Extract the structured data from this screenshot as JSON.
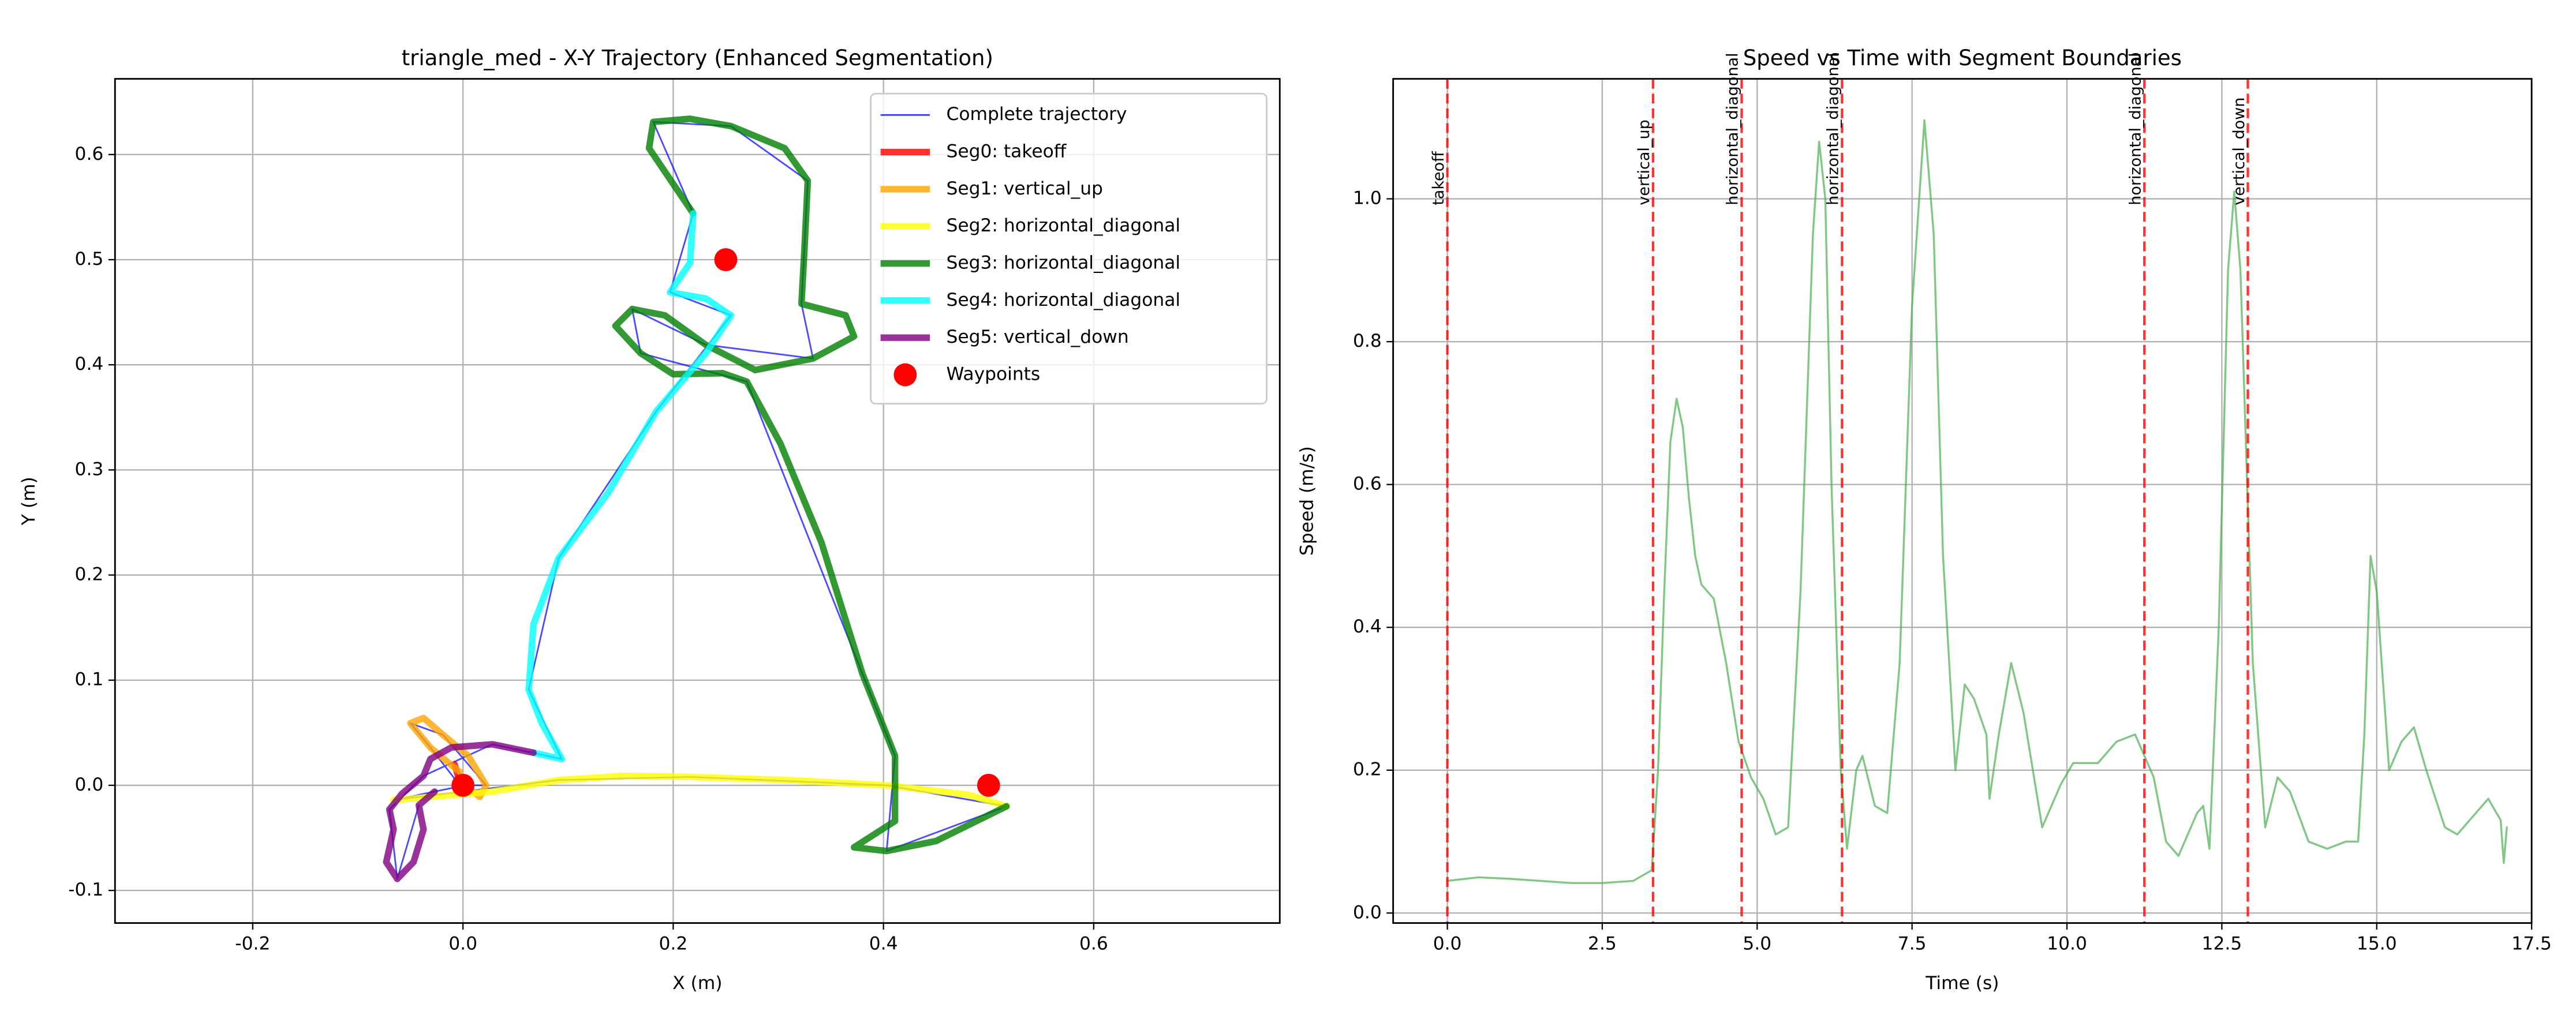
{
  "chart_data": [
    {
      "type": "line",
      "title": "triangle_med - X-Y Trajectory (Enhanced Segmentation)",
      "xlabel": "X (m)",
      "ylabel": "Y (m)",
      "xlim": [
        -0.331,
        0.777
      ],
      "ylim": [
        -0.131,
        0.672
      ],
      "xticks": [
        -0.2,
        {
          "value": 0,
          "label": "0.0"
        },
        0.2,
        0.4,
        0.6
      ],
      "yticks": [
        -0.1,
        {
          "value": 0,
          "label": "0.0"
        },
        0.1,
        0.2,
        0.3,
        0.4,
        0.5,
        0.6
      ],
      "grid": true,
      "legend": "upper right",
      "series": [
        {
          "name": "Complete trajectory",
          "color": "#0000ff",
          "linewidth": 1,
          "x": [
            -0.008,
            -0.003,
            -0.031,
            -0.05,
            -0.019,
            0.022,
            0.002,
            -0.066,
            0.091,
            0.216,
            0.403,
            0.517,
            0.403,
            0.411,
            0.38,
            0.27,
            0.169,
            0.161,
            0.231,
            0.333,
            0.322,
            0.328,
            0.255,
            0.181,
            0.219,
            0.197,
            0.255,
            0.184,
            0.091,
            0.0625,
            0.094,
            0.028,
            -0.0375,
            -0.07,
            -0.0625,
            -0.042
          ],
          "y": [
            0.02,
            0.0,
            0.036,
            0.059,
            0.048,
            0.0,
            0.0,
            -0.014,
            0.005,
            0.008,
            0.0,
            -0.02,
            -0.0625,
            0.028,
            0.106,
            0.384,
            0.411,
            0.453,
            0.419,
            0.406,
            0.458,
            0.575,
            0.627,
            0.631,
            0.544,
            0.469,
            0.447,
            0.356,
            0.216,
            0.091,
            0.025,
            0.039,
            0.009,
            -0.023,
            -0.089,
            -0.019
          ]
        },
        {
          "name": "Seg0: takeoff",
          "color": "#ff0000",
          "linewidth": 4,
          "x": [
            -0.008,
            -0.005,
            -0.003
          ],
          "y": [
            0.02,
            0.01,
            0.0
          ]
        },
        {
          "name": "Seg1: vertical_up",
          "color": "#ffa500",
          "linewidth": 4,
          "x": [
            -0.003,
            -0.031,
            -0.05,
            -0.0375,
            -0.019,
            0.005,
            0.022,
            0.016,
            0.002
          ],
          "y": [
            0.0125,
            0.036,
            0.059,
            0.064,
            0.048,
            0.028,
            0.0,
            -0.011,
            0.0
          ]
        },
        {
          "name": "Seg2: horizontal_diagonal",
          "color": "#ffff00",
          "linewidth": 4,
          "x": [
            -0.066,
            0.028,
            0.091,
            0.153,
            0.216,
            0.309,
            0.403,
            0.481,
            0.517
          ],
          "y": [
            -0.014,
            -0.006,
            0.005,
            0.009,
            0.008,
            0.005,
            0.0,
            -0.009,
            -0.02
          ]
        },
        {
          "name": "Seg3: horizontal_diagonal",
          "color": "#008000",
          "linewidth": 4,
          "x": [
            0.517,
            0.45,
            0.403,
            0.372,
            0.411,
            0.411,
            0.38,
            0.341,
            0.302,
            0.27,
            0.247,
            0.2,
            0.169,
            0.145,
            0.161,
            0.192,
            0.231,
            0.278,
            0.333,
            0.372,
            0.364,
            0.322,
            0.325,
            0.328,
            0.306,
            0.255,
            0.216,
            0.181,
            0.177,
            0.2,
            0.219
          ],
          "y": [
            -0.02,
            -0.053,
            -0.0625,
            -0.059,
            -0.034,
            0.028,
            0.106,
            0.231,
            0.325,
            0.384,
            0.392,
            0.391,
            0.411,
            0.437,
            0.453,
            0.447,
            0.419,
            0.395,
            0.406,
            0.427,
            0.447,
            0.458,
            0.513,
            0.575,
            0.606,
            0.627,
            0.634,
            0.631,
            0.606,
            0.572,
            0.544
          ]
        },
        {
          "name": "Seg4: horizontal_diagonal",
          "color": "#00ffff",
          "linewidth": 4,
          "x": [
            0.219,
            0.216,
            0.197,
            0.231,
            0.255,
            0.231,
            0.184,
            0.138,
            0.091,
            0.067,
            0.0625,
            0.075,
            0.094,
            0.067
          ],
          "y": [
            0.544,
            0.497,
            0.469,
            0.463,
            0.447,
            0.411,
            0.356,
            0.278,
            0.216,
            0.153,
            0.091,
            0.059,
            0.025,
            0.031
          ]
        },
        {
          "name": "Seg5: vertical_down",
          "color": "#800080",
          "linewidth": 4,
          "x": [
            0.067,
            0.028,
            -0.011,
            -0.031,
            -0.0375,
            -0.058,
            -0.07,
            -0.066,
            -0.073,
            -0.0625,
            -0.047,
            -0.0375,
            -0.042,
            -0.027
          ],
          "y": [
            0.031,
            0.039,
            0.036,
            0.025,
            0.009,
            -0.008,
            -0.023,
            -0.042,
            -0.073,
            -0.089,
            -0.073,
            -0.042,
            -0.019,
            -0.006
          ]
        },
        {
          "name": "Waypoints",
          "color": "#ff0000",
          "mode": "markers",
          "x": [
            0,
            0.5,
            0.25
          ],
          "y": [
            0,
            0,
            0.5
          ]
        }
      ]
    },
    {
      "type": "line",
      "title": "Speed vs Time with Segment Boundaries",
      "xlabel": "Time (s)",
      "ylabel": "Speed (m/s)",
      "xlim": [
        -0.875,
        17.5
      ],
      "ylim": [
        -0.014,
        1.168
      ],
      "xticks": [
        {
          "value": 0,
          "label": "0.0"
        },
        2.5,
        {
          "value": 5,
          "label": "5.0"
        },
        7.5,
        {
          "value": 10,
          "label": "10.0"
        },
        12.5,
        {
          "value": 15,
          "label": "15.0"
        },
        17.5
      ],
      "yticks": [
        {
          "value": 0,
          "label": "0.0"
        },
        0.2,
        0.4,
        0.6,
        0.8,
        {
          "value": 1,
          "label": "1.0"
        }
      ],
      "grid": true,
      "boundaries": [
        {
          "x": 0,
          "label": "takeoff"
        },
        {
          "x": 3.32,
          "label": "vertical_up"
        },
        {
          "x": 4.75,
          "label": "horizontal_diagonal"
        },
        {
          "x": 6.37,
          "label": "horizontal_diagonal"
        },
        {
          "x": 11.25,
          "label": "horizontal_diagonal"
        },
        {
          "x": 12.92,
          "label": "vertical_down"
        }
      ],
      "boundary_color": "#ff0000",
      "series": [
        {
          "color": "#4caf50",
          "linewidth": 1.2,
          "x": [
            0,
            0.5,
            1,
            1.5,
            2,
            2.5,
            3,
            3.2,
            3.3,
            3.4,
            3.5,
            3.6,
            3.7,
            3.8,
            3.9,
            4.0,
            4.1,
            4.3,
            4.5,
            4.7,
            4.9,
            5.1,
            5.3,
            5.5,
            5.7,
            5.9,
            6.0,
            6.1,
            6.2,
            6.35,
            6.45,
            6.6,
            6.7,
            6.9,
            7.1,
            7.3,
            7.5,
            7.7,
            7.85,
            8.0,
            8.2,
            8.35,
            8.5,
            8.7,
            8.75,
            8.9,
            9.1,
            9.3,
            9.6,
            9.9,
            10.1,
            10.5,
            10.8,
            11.1,
            11.4,
            11.6,
            11.8,
            12.1,
            12.2,
            12.3,
            12.45,
            12.6,
            12.7,
            12.8,
            13.0,
            13.2,
            13.4,
            13.6,
            13.9,
            14.2,
            14.5,
            14.7,
            14.8,
            14.9,
            15.0,
            15.2,
            15.4,
            15.6,
            15.8,
            16.1,
            16.3,
            16.6,
            16.8,
            17.0,
            17.05,
            17.1
          ],
          "values": [
            0.045,
            0.05,
            0.048,
            0.045,
            0.042,
            0.042,
            0.045,
            0.055,
            0.06,
            0.2,
            0.45,
            0.66,
            0.72,
            0.68,
            0.58,
            0.5,
            0.46,
            0.44,
            0.35,
            0.24,
            0.19,
            0.16,
            0.11,
            0.12,
            0.45,
            0.95,
            1.08,
            1.0,
            0.6,
            0.2,
            0.09,
            0.2,
            0.22,
            0.15,
            0.14,
            0.35,
            0.85,
            1.11,
            0.95,
            0.5,
            0.2,
            0.32,
            0.3,
            0.25,
            0.16,
            0.25,
            0.35,
            0.28,
            0.12,
            0.18,
            0.21,
            0.21,
            0.24,
            0.25,
            0.19,
            0.1,
            0.08,
            0.14,
            0.15,
            0.09,
            0.4,
            0.9,
            1.01,
            0.9,
            0.35,
            0.12,
            0.19,
            0.17,
            0.1,
            0.09,
            0.1,
            0.1,
            0.25,
            0.5,
            0.45,
            0.2,
            0.24,
            0.26,
            0.2,
            0.12,
            0.11,
            0.14,
            0.16,
            0.13,
            0.07,
            0.12
          ]
        }
      ]
    }
  ]
}
